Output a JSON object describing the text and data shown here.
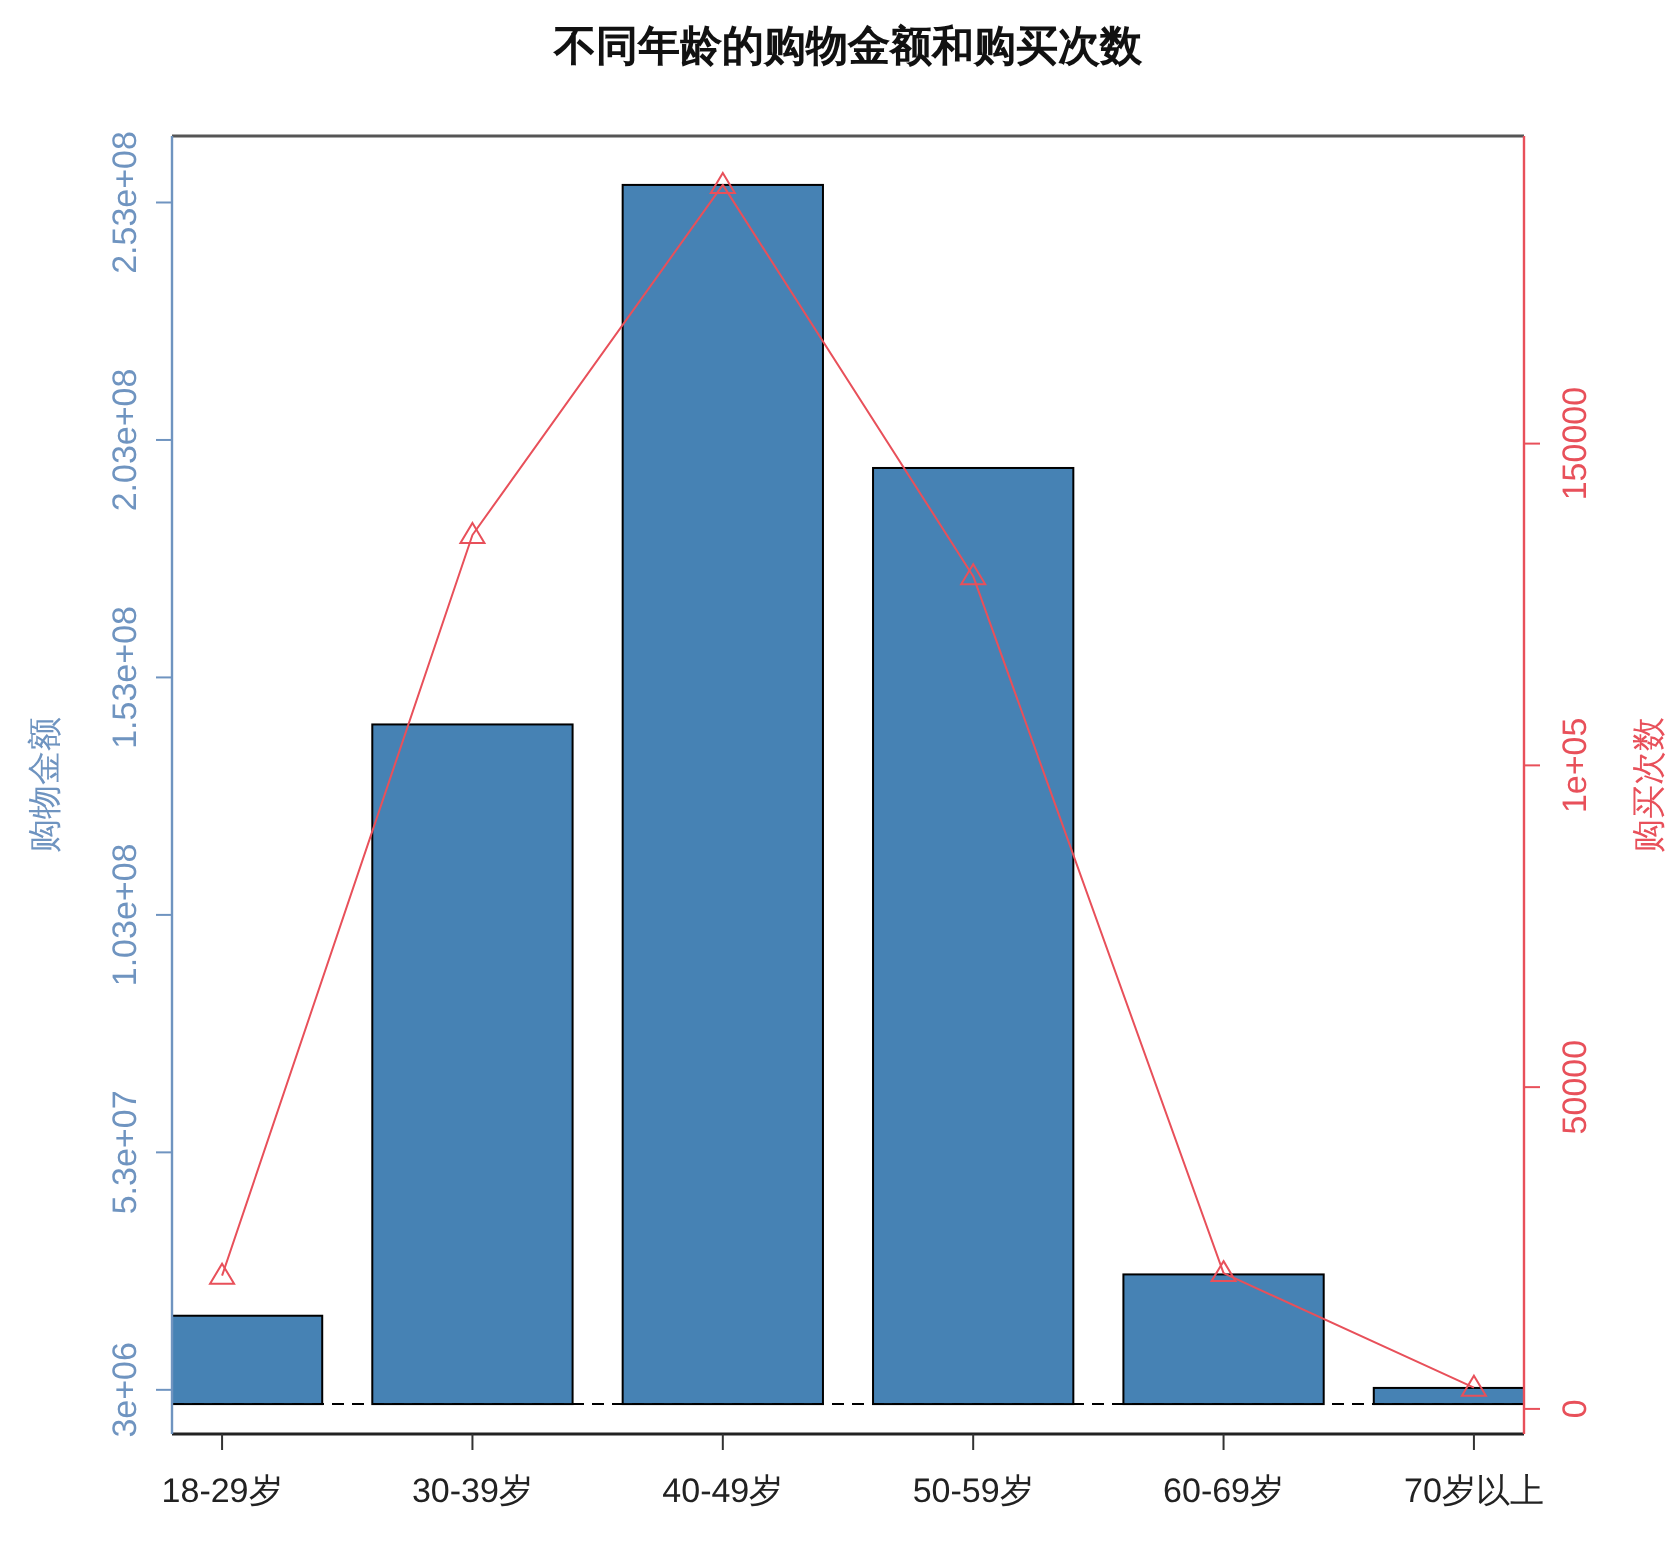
{
  "chart_data": {
    "type": "bar",
    "title": "不同年龄的购物金额和购买次数",
    "categories": [
      "18-29岁",
      "30-39岁",
      "40-49岁",
      "50-59岁",
      "60-69岁",
      "70岁以上"
    ],
    "ylabel": "购物金额",
    "y2label": "购买次数",
    "ylim": [
      -6300000,
      267000000
    ],
    "yticks": [
      {
        "value": 3000000,
        "label": "3e+06"
      },
      {
        "value": 53000000,
        "label": "5.3e+07"
      },
      {
        "value": 103000000,
        "label": "1.03e+08"
      },
      {
        "value": 153000000,
        "label": "1.53e+08"
      },
      {
        "value": 203000000,
        "label": "2.03e+08"
      },
      {
        "value": 253000000,
        "label": "2.53e+08"
      }
    ],
    "y2lim": [
      -3900,
      197800
    ],
    "y2ticks": [
      0,
      50000,
      {
        "value": 100000,
        "label": "1e+05"
      },
      150000
    ],
    "series": [
      {
        "color": "#4682b4",
        "values": [
          18600000,
          143100000,
          256700000,
          197100000,
          27300000,
          3400000
        ]
      },
      {
        "type": "line",
        "axis": "y2",
        "color": "#e8505a",
        "marker": "triangle",
        "line_style": "solid",
        "values": [
          20700,
          135800,
          190200,
          129400,
          21100,
          3300
        ]
      }
    ],
    "ref_lines": [
      {
        "axis": "y",
        "value": 0,
        "color": "#000000",
        "line_style": "dashed"
      }
    ],
    "grid": false
  }
}
